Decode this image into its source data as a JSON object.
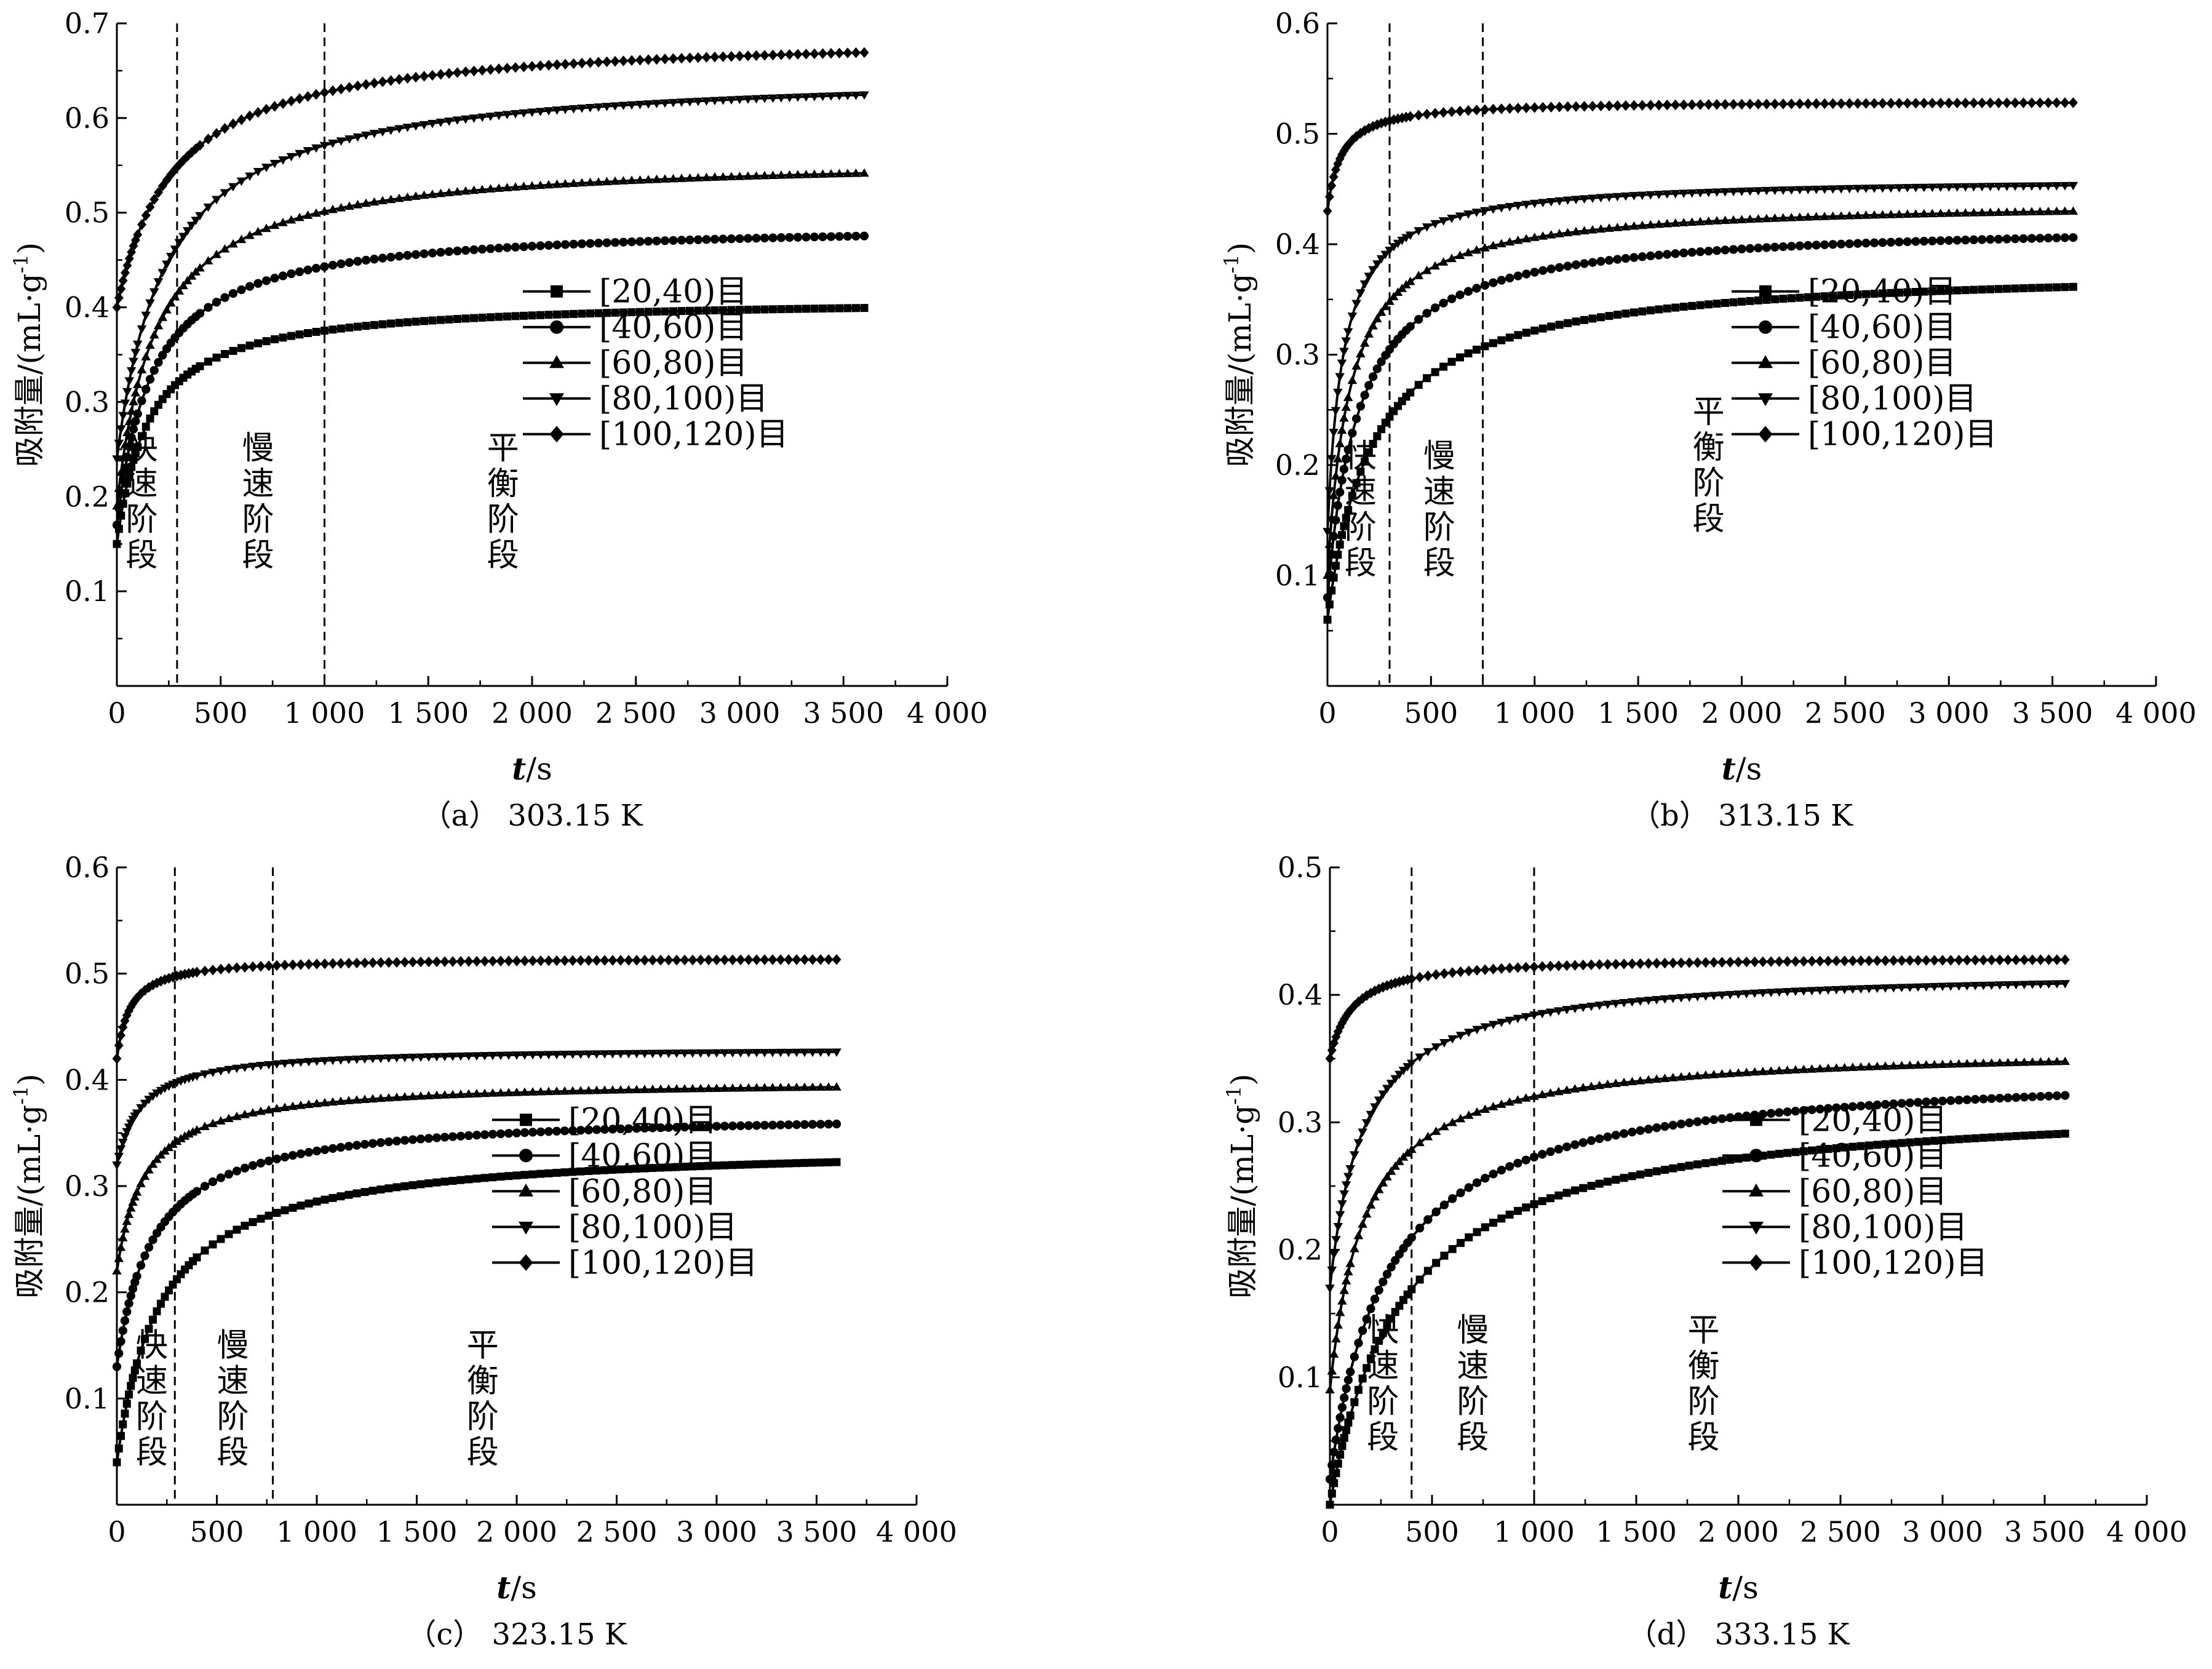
{
  "chart_data": [
    {
      "type": "line",
      "caption": "（a） 303.15 K",
      "xlabel_var": "t",
      "xlabel_unit": "/s",
      "ylabel": "吸附量/(mL·g",
      "ylabel_sup": "-1",
      "ylabel_close": ")",
      "xlim": [
        0,
        4000
      ],
      "ylim": [
        0,
        0.7
      ],
      "x_ticks": [
        0,
        500,
        1000,
        1500,
        2000,
        2500,
        3000,
        3500,
        4000
      ],
      "x_tick_labels": [
        "0",
        "500",
        "1 000",
        "1 500",
        "2 000",
        "2 500",
        "3 000",
        "3 500",
        "4 000"
      ],
      "y_ticks": [
        0.1,
        0.2,
        0.3,
        0.4,
        0.5,
        0.6,
        0.7
      ],
      "y_tick_labels": [
        "0.1",
        "0.2",
        "0.3",
        "0.4",
        "0.5",
        "0.6",
        "0.7"
      ],
      "dividers": [
        290,
        1000
      ],
      "stages": [
        {
          "text": "快速阶段",
          "x": 120,
          "y": 0.195
        },
        {
          "text": "慢速阶段",
          "x": 680,
          "y": 0.195
        },
        {
          "text": "平衡阶段",
          "x": 1860,
          "y": 0.195
        }
      ],
      "legend_position": "lower-right",
      "series": [
        {
          "name": "[20,40)目",
          "marker": "square",
          "q0": 0.15,
          "qe": 0.41,
          "b": 0.0065
        },
        {
          "name": "[40,60)目",
          "marker": "circle",
          "q0": 0.17,
          "qe": 0.49,
          "b": 0.0058
        },
        {
          "name": "[60,80)目",
          "marker": "triangle-up",
          "q0": 0.19,
          "qe": 0.56,
          "b": 0.0053
        },
        {
          "name": "[80,100)目",
          "marker": "triangle-down",
          "q0": 0.24,
          "qe": 0.65,
          "b": 0.0042
        },
        {
          "name": "[100,120)目",
          "marker": "diamond",
          "q0": 0.4,
          "qe": 0.69,
          "b": 0.0036
        }
      ]
    },
    {
      "type": "line",
      "caption": "（b） 313.15 K",
      "xlabel_var": "t",
      "xlabel_unit": "/s",
      "ylabel": "吸附量/(mL·g",
      "ylabel_sup": "-1",
      "ylabel_close": ")",
      "xlim": [
        0,
        4000
      ],
      "ylim": [
        0,
        0.6
      ],
      "x_ticks": [
        0,
        500,
        1000,
        1500,
        2000,
        2500,
        3000,
        3500,
        4000
      ],
      "x_tick_labels": [
        "0",
        "500",
        "1 000",
        "1 500",
        "2 000",
        "2 500",
        "3 000",
        "3 500",
        "4 000"
      ],
      "y_ticks": [
        0.1,
        0.2,
        0.3,
        0.4,
        0.5,
        0.6
      ],
      "y_tick_labels": [
        "0.1",
        "0.2",
        "0.3",
        "0.4",
        "0.5",
        "0.6"
      ],
      "dividers": [
        300,
        750
      ],
      "stages": [
        {
          "text": "快速阶段",
          "x": 160,
          "y": 0.16
        },
        {
          "text": "慢速阶段",
          "x": 540,
          "y": 0.16
        },
        {
          "text": "平衡阶段",
          "x": 1840,
          "y": 0.2
        }
      ],
      "legend_position": "lower-right",
      "series": [
        {
          "name": "[20,40)目",
          "marker": "square",
          "q0": 0.06,
          "qe": 0.38,
          "b": 0.0045
        },
        {
          "name": "[40,60)目",
          "marker": "circle",
          "q0": 0.08,
          "qe": 0.42,
          "b": 0.0065
        },
        {
          "name": "[60,80)目",
          "marker": "triangle-up",
          "q0": 0.1,
          "qe": 0.44,
          "b": 0.009
        },
        {
          "name": "[80,100)目",
          "marker": "triangle-down",
          "q0": 0.14,
          "qe": 0.46,
          "b": 0.013
        },
        {
          "name": "[100,120)目",
          "marker": "diamond",
          "q0": 0.43,
          "qe": 0.53,
          "b": 0.015
        }
      ]
    },
    {
      "type": "line",
      "caption": "（c） 323.15 K",
      "xlabel_var": "t",
      "xlabel_unit": "/s",
      "ylabel": "吸附量/(mL·g",
      "ylabel_sup": "-1",
      "ylabel_close": ")",
      "xlim": [
        0,
        4000
      ],
      "ylim": [
        0,
        0.6
      ],
      "x_ticks": [
        0,
        500,
        1000,
        1500,
        2000,
        2500,
        3000,
        3500,
        4000
      ],
      "x_tick_labels": [
        "0",
        "500",
        "1 000",
        "1 500",
        "2 000",
        "2 500",
        "3 000",
        "3 500",
        "4 000"
      ],
      "y_ticks": [
        0.1,
        0.2,
        0.3,
        0.4,
        0.5,
        0.6
      ],
      "y_tick_labels": [
        "0.1",
        "0.2",
        "0.3",
        "0.4",
        "0.5",
        "0.6"
      ],
      "dividers": [
        290,
        780
      ],
      "stages": [
        {
          "text": "快速阶段",
          "x": 175,
          "y": 0.1
        },
        {
          "text": "慢速阶段",
          "x": 580,
          "y": 0.1
        },
        {
          "text": "平衡阶段",
          "x": 1830,
          "y": 0.1
        }
      ],
      "legend_position": "lower-right",
      "series": [
        {
          "name": "[20,40)目",
          "marker": "square",
          "q0": 0.04,
          "qe": 0.34,
          "b": 0.0045
        },
        {
          "name": "[40,60)目",
          "marker": "circle",
          "q0": 0.13,
          "qe": 0.37,
          "b": 0.0055
        },
        {
          "name": "[60,80)目",
          "marker": "triangle-up",
          "q0": 0.22,
          "qe": 0.4,
          "b": 0.007
        },
        {
          "name": "[80,100)目",
          "marker": "triangle-down",
          "q0": 0.32,
          "qe": 0.43,
          "b": 0.008
        },
        {
          "name": "[100,120)目",
          "marker": "diamond",
          "q0": 0.42,
          "qe": 0.515,
          "b": 0.015
        }
      ]
    },
    {
      "type": "line",
      "caption": "（d） 333.15 K",
      "xlabel_var": "t",
      "xlabel_unit": "/s",
      "ylabel": "吸附量/(mL·g",
      "ylabel_sup": "-1",
      "ylabel_close": ")",
      "xlim": [
        0,
        4000
      ],
      "ylim": [
        0,
        0.5
      ],
      "x_ticks": [
        0,
        500,
        1000,
        1500,
        2000,
        2500,
        3000,
        3500,
        4000
      ],
      "x_tick_labels": [
        "0",
        "500",
        "1 000",
        "1 500",
        "2 000",
        "2 500",
        "3 000",
        "3 500",
        "4 000"
      ],
      "y_ticks": [
        0.1,
        0.2,
        0.3,
        0.4,
        0.5
      ],
      "y_tick_labels": [
        "0.1",
        "0.2",
        "0.3",
        "0.4",
        "0.5"
      ],
      "dividers": [
        400,
        1000
      ],
      "stages": [
        {
          "text": "快速阶段",
          "x": 260,
          "y": 0.095
        },
        {
          "text": "慢速阶段",
          "x": 700,
          "y": 0.095
        },
        {
          "text": "平衡阶段",
          "x": 1830,
          "y": 0.095
        }
      ],
      "legend_position": "lower-right",
      "series": [
        {
          "name": "[20,40)目",
          "marker": "square",
          "q0": 0.0,
          "qe": 0.32,
          "b": 0.0028
        },
        {
          "name": "[40,60)目",
          "marker": "circle",
          "q0": 0.02,
          "qe": 0.345,
          "b": 0.0035
        },
        {
          "name": "[60,80)目",
          "marker": "triangle-up",
          "q0": 0.09,
          "qe": 0.36,
          "b": 0.0058
        },
        {
          "name": "[80,100)目",
          "marker": "triangle-down",
          "q0": 0.17,
          "qe": 0.42,
          "b": 0.006
        },
        {
          "name": "[100,120)目",
          "marker": "diamond",
          "q0": 0.35,
          "qe": 0.43,
          "b": 0.009
        }
      ]
    }
  ]
}
